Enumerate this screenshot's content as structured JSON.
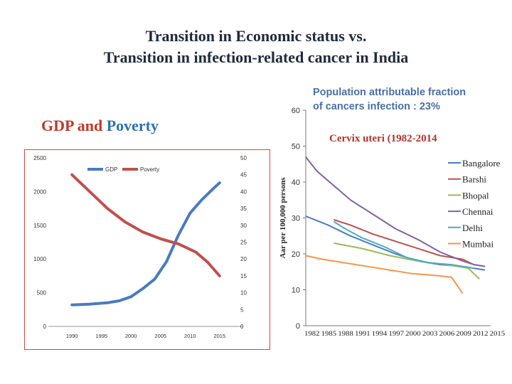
{
  "title_line1": "Transition in Economic status vs.",
  "title_line2": "Transition in infection-related cancer in India",
  "left_heading": {
    "gdp": "GDP",
    "and": " and ",
    "poverty": "Poverty"
  },
  "right_heading": {
    "line1": "Population attributable fraction",
    "line2": "of cancers infection : 23%",
    "subtitle": "Cervix uteri (1982-2014"
  },
  "chart_data": [
    {
      "type": "line",
      "title": "GDP and Poverty",
      "x_ticks": [
        "1990",
        "1995",
        "2000",
        "2005",
        "2010",
        "2015"
      ],
      "x_range": [
        1986,
        2019
      ],
      "left_axis": {
        "ticks": [
          "0",
          "500",
          "1000",
          "1500",
          "2000",
          "2500"
        ],
        "range": [
          0,
          2500
        ]
      },
      "right_axis": {
        "ticks": [
          "0",
          "5",
          "10",
          "15",
          "20",
          "25",
          "30",
          "35",
          "40",
          "45",
          "50"
        ],
        "range": [
          0,
          50
        ]
      },
      "legend": [
        "GDP",
        "Poverty"
      ],
      "colors": {
        "GDP": "#4a7bbf",
        "Poverty": "#c0504d"
      },
      "series": [
        {
          "name": "GDP",
          "axis": "left",
          "x": [
            1990,
            1993,
            1996,
            1998,
            2000,
            2002,
            2004,
            2006,
            2008,
            2010,
            2012,
            2014,
            2015
          ],
          "values": [
            320,
            330,
            350,
            380,
            440,
            560,
            700,
            960,
            1350,
            1680,
            1880,
            2050,
            2130
          ]
        },
        {
          "name": "Poverty",
          "axis": "right",
          "x": [
            1990,
            1993,
            1996,
            1999,
            2002,
            2005,
            2008,
            2011,
            2013,
            2015
          ],
          "values": [
            45,
            40,
            35,
            31,
            28,
            26,
            24.5,
            22,
            19,
            15
          ]
        }
      ]
    },
    {
      "type": "line",
      "title": "Cervix uteri (1982-2014",
      "ylabel": "Aar per 100,000 persons",
      "y_ticks": [
        "0",
        "10",
        "20",
        "30",
        "40",
        "50",
        "60"
      ],
      "ylim": [
        0,
        60
      ],
      "x_ticks": [
        "1982",
        "1985",
        "1988",
        "1991",
        "1994",
        "1997",
        "2000",
        "2003",
        "2006",
        "2009",
        "2012",
        "2015"
      ],
      "x_range": [
        1982,
        2015
      ],
      "series": [
        {
          "name": "Bangalore",
          "color": "#4a7bbf",
          "x": [
            1982,
            1986,
            1990,
            1994,
            1998,
            2002,
            2006,
            2010,
            2012,
            2014
          ],
          "values": [
            30.5,
            28,
            25,
            22.5,
            20,
            18,
            17,
            16.5,
            16,
            15.5
          ]
        },
        {
          "name": "Barshi",
          "color": "#c0504d",
          "x": [
            1987,
            1990,
            1994,
            1998,
            2002,
            2006,
            2010,
            2012,
            2014
          ],
          "values": [
            29.5,
            28,
            25.5,
            23.5,
            21.5,
            19.5,
            18.5,
            17,
            16.5
          ]
        },
        {
          "name": "Bhopal",
          "color": "#9bbb59",
          "x": [
            1987,
            1992,
            1997,
            2002,
            2007,
            2011,
            2013
          ],
          "values": [
            23,
            21.5,
            19.5,
            18,
            17,
            16,
            13
          ]
        },
        {
          "name": "Chennai",
          "color": "#8064a2",
          "x": [
            1982,
            1984,
            1987,
            1990,
            1994,
            1998,
            2002,
            2006,
            2010,
            2012,
            2014
          ],
          "values": [
            47,
            43,
            39,
            35,
            31,
            27,
            24,
            20.5,
            18,
            17,
            16.5
          ]
        },
        {
          "name": "Delhi",
          "color": "#4bacc6",
          "x": [
            1987,
            1989,
            1992,
            1996,
            2000,
            2004,
            2008,
            2012
          ],
          "values": [
            29,
            27,
            24.5,
            22,
            19,
            17.5,
            17,
            16
          ]
        },
        {
          "name": "Mumbai",
          "color": "#f79646",
          "x": [
            1982,
            1985,
            1989,
            1993,
            1997,
            2001,
            2005,
            2008,
            2010
          ],
          "values": [
            19.5,
            18.5,
            17.5,
            16.5,
            15.5,
            14.5,
            14,
            13.5,
            9
          ]
        }
      ]
    }
  ]
}
